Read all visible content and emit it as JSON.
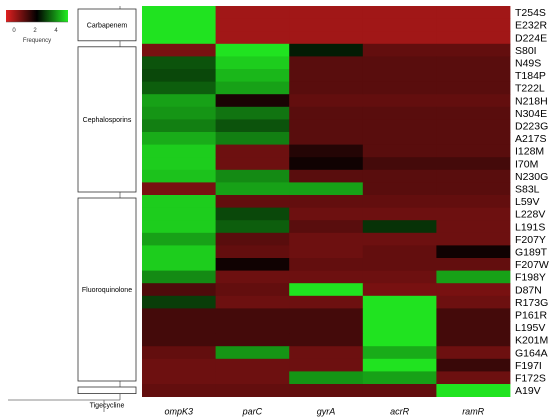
{
  "chart_data": {
    "type": "heatmap",
    "legend": {
      "label": "Frequency",
      "ticks": [
        "0",
        "2",
        "4"
      ],
      "colors": [
        "#e02020",
        "#000000",
        "#22ee22"
      ],
      "placement": "top-left"
    },
    "columns": [
      "ompK3",
      "parC",
      "gyrA",
      "acrR",
      "ramR"
    ],
    "rows": [
      "T254S",
      "E232R",
      "D224E",
      "S80I",
      "N49S",
      "T184P",
      "T222L",
      "N218H",
      "N304E",
      "D223G",
      "A217S",
      "I128M",
      "I70M",
      "N230G",
      "S83L",
      "L59V",
      "L228V",
      "L191S",
      "F207Y",
      "G189T",
      "F207W",
      "F198Y",
      "D87N",
      "R173G",
      "P161R",
      "L195V",
      "K201M",
      "G164A",
      "F197I",
      "F172S",
      "A19V"
    ],
    "groups": [
      {
        "label": "Carbapenem",
        "rows": [
          "T254S",
          "E232R",
          "D224E"
        ]
      },
      {
        "label": "Cephalosporins",
        "rows": [
          "S80I",
          "N49S",
          "T184P",
          "T222L",
          "N218H",
          "N304E",
          "D223G",
          "A217S",
          "I128M",
          "I70M",
          "N230G",
          "S83L"
        ]
      },
      {
        "label": "Fluoroquinolone",
        "rows": [
          "L59V",
          "L228V",
          "L191S",
          "F207Y",
          "G189T",
          "F207W",
          "F198Y",
          "D87N",
          "R173G",
          "P161R",
          "L195V",
          "K201M",
          "G164A",
          "F197I",
          "F172S"
        ]
      },
      {
        "label": "Tigecycline",
        "rows": [
          "A19V"
        ]
      }
    ],
    "values": [
      [
        4.2,
        0.6,
        0.6,
        0.6,
        0.6
      ],
      [
        4.2,
        0.6,
        0.6,
        0.6,
        0.6
      ],
      [
        4.2,
        0.6,
        0.6,
        0.6,
        0.6
      ],
      [
        1.0,
        4.2,
        2.4,
        1.2,
        1.2
      ],
      [
        2.9,
        4.0,
        1.3,
        1.3,
        1.3
      ],
      [
        2.8,
        3.8,
        1.3,
        1.3,
        1.3
      ],
      [
        3.0,
        3.6,
        1.3,
        1.3,
        1.3
      ],
      [
        3.6,
        1.9,
        1.2,
        1.2,
        1.2
      ],
      [
        3.5,
        3.2,
        1.3,
        1.3,
        1.3
      ],
      [
        3.3,
        2.9,
        1.3,
        1.3,
        1.3
      ],
      [
        3.7,
        3.3,
        1.3,
        1.3,
        1.3
      ],
      [
        4.0,
        1.1,
        1.8,
        1.3,
        1.3
      ],
      [
        4.0,
        1.1,
        2.0,
        1.5,
        1.5
      ],
      [
        3.9,
        3.4,
        1.3,
        1.3,
        1.3
      ],
      [
        1.0,
        3.6,
        3.6,
        1.3,
        1.3
      ],
      [
        4.0,
        1.2,
        1.2,
        1.2,
        1.2
      ],
      [
        4.0,
        2.8,
        1.1,
        1.1,
        1.1
      ],
      [
        4.0,
        3.0,
        1.3,
        2.6,
        1.1
      ],
      [
        3.6,
        1.3,
        1.1,
        1.1,
        1.1
      ],
      [
        4.0,
        1.2,
        1.1,
        1.2,
        2.0
      ],
      [
        4.0,
        2.0,
        1.2,
        1.2,
        1.2
      ],
      [
        3.4,
        1.1,
        1.1,
        1.1,
        3.6
      ],
      [
        1.4,
        1.2,
        4.2,
        1.0,
        1.0
      ],
      [
        2.7,
        1.1,
        1.1,
        4.2,
        1.1
      ],
      [
        1.5,
        1.5,
        1.5,
        4.2,
        1.5
      ],
      [
        1.5,
        1.5,
        1.5,
        4.2,
        1.5
      ],
      [
        1.5,
        1.5,
        1.5,
        4.2,
        1.5
      ],
      [
        1.2,
        3.5,
        1.1,
        3.7,
        1.1
      ],
      [
        1.1,
        1.1,
        1.1,
        4.2,
        1.6
      ],
      [
        1.1,
        1.1,
        3.5,
        3.6,
        1.1
      ],
      [
        1.2,
        1.2,
        1.2,
        1.2,
        4.2
      ]
    ],
    "range": [
      0,
      4.3
    ]
  }
}
